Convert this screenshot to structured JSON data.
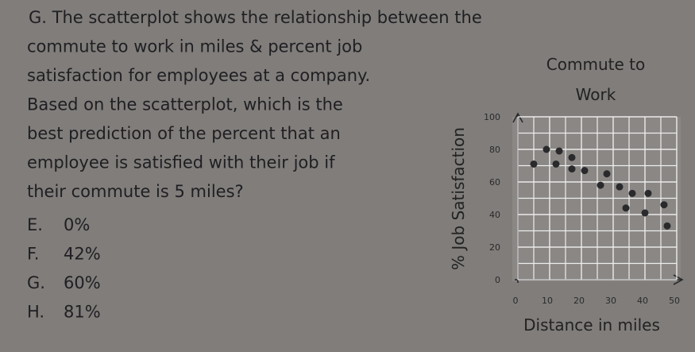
{
  "question": {
    "lines": [
      "G. The scatterplot shows the relationship between the",
      "commute to work in miles & percent job",
      "satisfaction for employees at a company.",
      "Based on the scatterplot, which is the",
      "best prediction of the percent that an",
      "employee is satisfied with their job if",
      "their commute is 5 miles?"
    ],
    "options": [
      {
        "letter": "E.",
        "text": "0%"
      },
      {
        "letter": "F.",
        "text": "42%"
      },
      {
        "letter": "G.",
        "text": "60%"
      },
      {
        "letter": "H.",
        "text": "81%"
      }
    ]
  },
  "chart_data": {
    "type": "scatter",
    "title_lines": [
      "Commute to",
      "Work"
    ],
    "x_label": "Distance in miles",
    "y_label": "% Job Satisfaction",
    "x": [
      5,
      9,
      12,
      13,
      17,
      17,
      21,
      26,
      28,
      32,
      36,
      41,
      34,
      40,
      46,
      47
    ],
    "values": [
      71,
      80,
      71,
      79,
      75,
      68,
      67,
      58,
      65,
      57,
      53,
      53,
      44,
      41,
      46,
      33
    ],
    "color": "#2a2a2c",
    "xlim": [
      0,
      50
    ],
    "ylim": [
      0,
      100
    ],
    "xticks": [
      0,
      10,
      20,
      30,
      40,
      50
    ],
    "yticks": [
      0,
      20,
      40,
      60,
      80,
      100
    ],
    "grid": true
  }
}
